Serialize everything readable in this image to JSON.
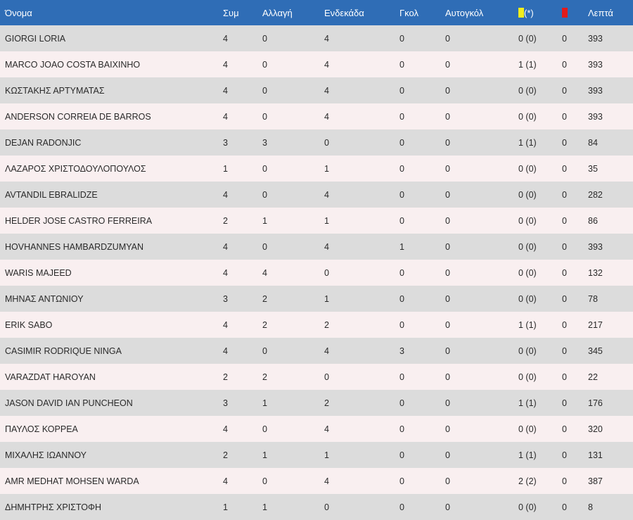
{
  "header": {
    "name": "Όνομα",
    "apps": "Συμ",
    "sub": "Αλλαγή",
    "lineup": "Ενδεκάδα",
    "goals": "Γκολ",
    "own_goals": "Αυτογκόλ",
    "yellow_suffix": "(*)",
    "minutes": "Λεπτά"
  },
  "colors": {
    "header_bg": "#2f6db6",
    "yellow_card": "#f2ee1c",
    "red_card": "#e21b1b"
  },
  "rows": [
    {
      "name": "GIORGI LORIA",
      "apps": "4",
      "sub": "0",
      "lineup": "4",
      "goals": "0",
      "own_goals": "0",
      "yellow": "0 (0)",
      "red": "0",
      "minutes": "393"
    },
    {
      "name": "MARCO JOAO COSTA BAIXINHO",
      "apps": "4",
      "sub": "0",
      "lineup": "4",
      "goals": "0",
      "own_goals": "0",
      "yellow": "1 (1)",
      "red": "0",
      "minutes": "393"
    },
    {
      "name": "ΚΩΣΤΑΚΗΣ ΑΡΤΥΜΑΤΑΣ",
      "apps": "4",
      "sub": "0",
      "lineup": "4",
      "goals": "0",
      "own_goals": "0",
      "yellow": "0 (0)",
      "red": "0",
      "minutes": "393"
    },
    {
      "name": "ANDERSON CORREIA DE BARROS",
      "apps": "4",
      "sub": "0",
      "lineup": "4",
      "goals": "0",
      "own_goals": "0",
      "yellow": "0 (0)",
      "red": "0",
      "minutes": "393"
    },
    {
      "name": "DEJAN RADONJIC",
      "apps": "3",
      "sub": "3",
      "lineup": "0",
      "goals": "0",
      "own_goals": "0",
      "yellow": "1 (1)",
      "red": "0",
      "minutes": "84"
    },
    {
      "name": "ΛΑΖΑΡΟΣ ΧΡΙΣΤΟΔΟΥΛΟΠΟΥΛΟΣ",
      "apps": "1",
      "sub": "0",
      "lineup": "1",
      "goals": "0",
      "own_goals": "0",
      "yellow": "0 (0)",
      "red": "0",
      "minutes": "35"
    },
    {
      "name": "AVTANDIL EBRALIDZE",
      "apps": "4",
      "sub": "0",
      "lineup": "4",
      "goals": "0",
      "own_goals": "0",
      "yellow": "0 (0)",
      "red": "0",
      "minutes": "282"
    },
    {
      "name": "HELDER JOSE CASTRO FERREIRA",
      "apps": "2",
      "sub": "1",
      "lineup": "1",
      "goals": "0",
      "own_goals": "0",
      "yellow": "0 (0)",
      "red": "0",
      "minutes": "86"
    },
    {
      "name": "HOVHANNES HAMBARDZUMYAN",
      "apps": "4",
      "sub": "0",
      "lineup": "4",
      "goals": "1",
      "own_goals": "0",
      "yellow": "0 (0)",
      "red": "0",
      "minutes": "393"
    },
    {
      "name": "WARIS MAJEED",
      "apps": "4",
      "sub": "4",
      "lineup": "0",
      "goals": "0",
      "own_goals": "0",
      "yellow": "0 (0)",
      "red": "0",
      "minutes": "132"
    },
    {
      "name": "ΜΗΝΑΣ ΑΝΤΩΝΙΟΥ",
      "apps": "3",
      "sub": "2",
      "lineup": "1",
      "goals": "0",
      "own_goals": "0",
      "yellow": "0 (0)",
      "red": "0",
      "minutes": "78"
    },
    {
      "name": "ERIK SABO",
      "apps": "4",
      "sub": "2",
      "lineup": "2",
      "goals": "0",
      "own_goals": "0",
      "yellow": "1 (1)",
      "red": "0",
      "minutes": "217"
    },
    {
      "name": "CASIMIR RODRIQUE NINGA",
      "apps": "4",
      "sub": "0",
      "lineup": "4",
      "goals": "3",
      "own_goals": "0",
      "yellow": "0 (0)",
      "red": "0",
      "minutes": "345"
    },
    {
      "name": "VARAZDAT HAROYAN",
      "apps": "2",
      "sub": "2",
      "lineup": "0",
      "goals": "0",
      "own_goals": "0",
      "yellow": "0 (0)",
      "red": "0",
      "minutes": "22"
    },
    {
      "name": "JASON DAVID IAN PUNCHEON",
      "apps": "3",
      "sub": "1",
      "lineup": "2",
      "goals": "0",
      "own_goals": "0",
      "yellow": "1 (1)",
      "red": "0",
      "minutes": "176"
    },
    {
      "name": "ΠΑΥΛΟΣ ΚΟΡΡΕΑ",
      "apps": "4",
      "sub": "0",
      "lineup": "4",
      "goals": "0",
      "own_goals": "0",
      "yellow": "0 (0)",
      "red": "0",
      "minutes": "320"
    },
    {
      "name": "ΜΙΧΑΛΗΣ ΙΩΑΝΝΟΥ",
      "apps": "2",
      "sub": "1",
      "lineup": "1",
      "goals": "0",
      "own_goals": "0",
      "yellow": "1 (1)",
      "red": "0",
      "minutes": "131"
    },
    {
      "name": "AMR MEDHAT MOHSEN WARDA",
      "apps": "4",
      "sub": "0",
      "lineup": "4",
      "goals": "0",
      "own_goals": "0",
      "yellow": "2 (2)",
      "red": "0",
      "minutes": "387"
    },
    {
      "name": "ΔΗΜΗΤΡΗΣ ΧΡΙΣΤΟΦΗ",
      "apps": "1",
      "sub": "1",
      "lineup": "0",
      "goals": "0",
      "own_goals": "0",
      "yellow": "0 (0)",
      "red": "0",
      "minutes": "8"
    }
  ]
}
